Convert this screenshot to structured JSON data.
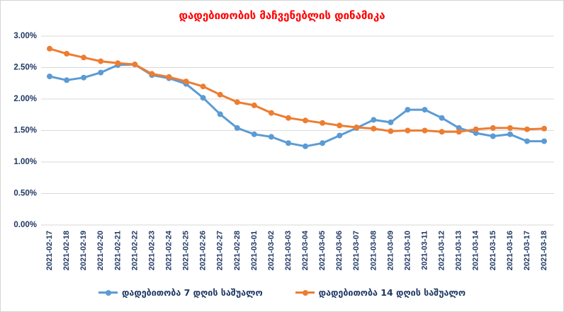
{
  "title": "დადებითობის მაჩვენებლის დინამიკა",
  "colors": {
    "title_text": "#FF0000",
    "axis_text": "#1F3864",
    "gridline": "#D9D9D9",
    "series_7day": "#5B9BD5",
    "series_14day": "#ED7D31",
    "border": "#D4D4D4",
    "background": "#FFFFFF"
  },
  "chart_data": {
    "type": "line",
    "title": "დადებითობის მაჩვენებლის დინამიკა",
    "xlabel": "",
    "ylabel": "",
    "ylim": [
      0,
      3
    ],
    "ytick_step": 0.5,
    "ytick_labels_bottom_to_top": [
      "0.00%",
      "0.50%",
      "1.00%",
      "1.50%",
      "2.00%",
      "2.50%",
      "3.00%"
    ],
    "grid": true,
    "legend_position": "bottom",
    "marker": "circle",
    "categories": [
      "2021-02-17",
      "2021-02-18",
      "2021-02-19",
      "2021-02-20",
      "2021-02-21",
      "2021-02-22",
      "2021-02-23",
      "2021-02-24",
      "2021-02-25",
      "2021-02-26",
      "2021-02-27",
      "2021-02-28",
      "2021-03-01",
      "2021-03-02",
      "2021-03-03",
      "2021-03-04",
      "2021-03-05",
      "2021-03-06",
      "2021-03-07",
      "2021-03-08",
      "2021-03-09",
      "2021-03-10",
      "2021-03-11",
      "2021-03-12",
      "2021-03-13",
      "2021-03-14",
      "2021-03-15",
      "2021-03-16",
      "2021-03-17",
      "2021-03-18"
    ],
    "series": [
      {
        "name": "დადებითობა 7 დღის საშუალო",
        "color": "#5B9BD5",
        "unit": "%",
        "values": [
          2.36,
          2.3,
          2.34,
          2.42,
          2.54,
          2.55,
          2.38,
          2.33,
          2.24,
          2.02,
          1.76,
          1.54,
          1.44,
          1.4,
          1.3,
          1.25,
          1.3,
          1.42,
          1.54,
          1.67,
          1.63,
          1.83,
          1.83,
          1.7,
          1.54,
          1.46,
          1.41,
          1.44,
          1.33,
          1.33
        ]
      },
      {
        "name": "დადებითობა 14 დღის საშუალო",
        "color": "#ED7D31",
        "unit": "%",
        "values": [
          2.8,
          2.72,
          2.66,
          2.6,
          2.57,
          2.55,
          2.4,
          2.35,
          2.28,
          2.2,
          2.07,
          1.95,
          1.9,
          1.78,
          1.7,
          1.66,
          1.62,
          1.58,
          1.55,
          1.53,
          1.49,
          1.5,
          1.5,
          1.48,
          1.48,
          1.52,
          1.54,
          1.54,
          1.52,
          1.53
        ]
      }
    ]
  }
}
